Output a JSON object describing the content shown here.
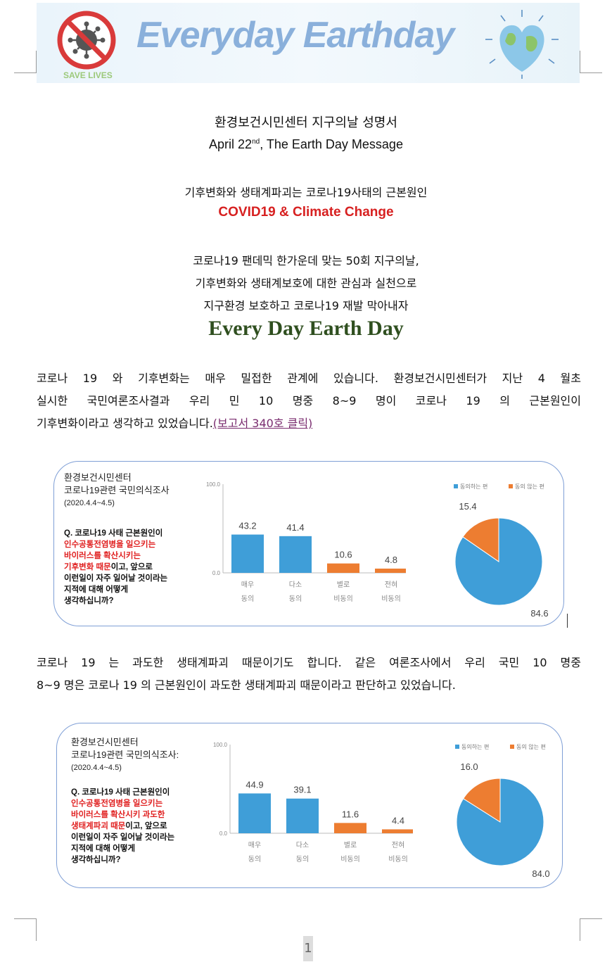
{
  "banner": {
    "title": "Everyday Earthday",
    "badge_text": "SAVE LIVES",
    "left_icon": "no-virus-icon",
    "right_icon": "earth-heart-icon"
  },
  "header": {
    "org_title": "환경보건시민센터 지구의날 성명서",
    "date_prefix": "April 22",
    "date_sup": "nd",
    "date_suffix": ", The Earth Day Message",
    "subtitle_ko": "기후변화와 생태계파괴는 코로나19사태의 근본원인",
    "subtitle_en": "COVID19 & Climate Change",
    "slogan_lines": [
      "코로나19 팬데믹 한가운데  맞는 50회 지구의날,",
      "기후변화와 생태계보호에 대한 관심과 실천으로",
      "지구환경 보호하고 코로나19 재발 막아내자"
    ],
    "slogan_en": "Every Day Earth Day"
  },
  "paragraph1": {
    "lines": [
      "코로나 19 와 기후변화는 매우 밀접한 관계에 있습니다. 환경보건시민센터가 지난 4 월초",
      "실시한 국민여론조사결과 우리 민 10 명중 8~9 명이 코로나 19 의 근본원인이",
      "기후변화이라고 생각하고 있었습니다."
    ],
    "link_text": "(보고서 340호 클릭)"
  },
  "paragraph2": {
    "lines": [
      "코로나 19 는 과도한 생태계파괴 때문이기도 합니다. 같은 여론조사에서 우리 국민 10 명중",
      "8~9 명은 코로나 19 의 근본원인이 과도한 생태계파괴 때문이라고 판단하고 있었습니다."
    ]
  },
  "survey1": {
    "org": "환경보건시민센터",
    "name": "코로나19관련 국민의식조사",
    "date": "(2020.4.4~4.5)",
    "question_parts": [
      {
        "text": "Q. 코로나19 사태 근본원인이",
        "red": false
      },
      {
        "text": "인수공통전염병을 일으키는",
        "red": true
      },
      {
        "text": "바이러스를 확산시키는",
        "red": true
      },
      {
        "text": "기후변화 때문",
        "red": true,
        "tail": "이고, 앞으로"
      },
      {
        "text": "이런일이 자주 일어날 것이라는",
        "red": false
      },
      {
        "text": "지적에 대해 어떻게",
        "red": false
      },
      {
        "text": "생각하십니까?",
        "red": false
      }
    ]
  },
  "survey2": {
    "org": "환경보건시민센터",
    "name": "코로나19관련 국민의식조사:",
    "date": "(2020.4.4~4.5)",
    "question_parts": [
      {
        "text": "Q. 코로나19 사태 근본원인이",
        "red": false
      },
      {
        "text": "인수공통전염병을 일으키는",
        "red": true
      },
      {
        "text": "바이러스를 확산시키 과도한",
        "red": true
      },
      {
        "text": "생태계파괴 때문",
        "red": true,
        "tail": "이고, 앞으로"
      },
      {
        "text": "이런일이 자주 일어날 것이라는",
        "red": false
      },
      {
        "text": "지적에 대해 어떻게",
        "red": false
      },
      {
        "text": "생각하십니까?",
        "red": false
      }
    ]
  },
  "chart_data": [
    {
      "type": "bar",
      "categories": [
        [
          "매우",
          "동의"
        ],
        [
          "다소",
          "동의"
        ],
        [
          "별로",
          "비동의"
        ],
        [
          "전혀",
          "비동의"
        ]
      ],
      "values": [
        43.2,
        41.4,
        10.6,
        4.8
      ],
      "colors": [
        "#3f9ed8",
        "#3f9ed8",
        "#ed7d31",
        "#ed7d31"
      ],
      "ylim": [
        0,
        100
      ],
      "yticks": [
        "100.0",
        "0.0"
      ]
    },
    {
      "type": "pie",
      "labels": [
        "동의하는 편",
        "동의 않는 편"
      ],
      "values": [
        84.6,
        15.4
      ],
      "value_labels": [
        "84.6",
        "15.4"
      ],
      "colors": [
        "#3f9ed8",
        "#ed7d31"
      ],
      "legend": "top-right"
    },
    {
      "type": "bar",
      "categories": [
        [
          "매우",
          "동의"
        ],
        [
          "다소",
          "동의"
        ],
        [
          "별로",
          "비동의"
        ],
        [
          "전혀",
          "비동의"
        ]
      ],
      "values": [
        44.9,
        39.1,
        11.6,
        4.4
      ],
      "colors": [
        "#3f9ed8",
        "#3f9ed8",
        "#ed7d31",
        "#ed7d31"
      ],
      "ylim": [
        0,
        100
      ],
      "yticks": [
        "100.0",
        "0.0"
      ]
    },
    {
      "type": "pie",
      "labels": [
        "동의하는 편",
        "동의 않는 편"
      ],
      "values": [
        84.0,
        16.0
      ],
      "value_labels": [
        "84.0",
        "16.0"
      ],
      "colors": [
        "#3f9ed8",
        "#ed7d31"
      ],
      "legend": "top-right"
    }
  ],
  "footer": {
    "page_number": "1"
  }
}
